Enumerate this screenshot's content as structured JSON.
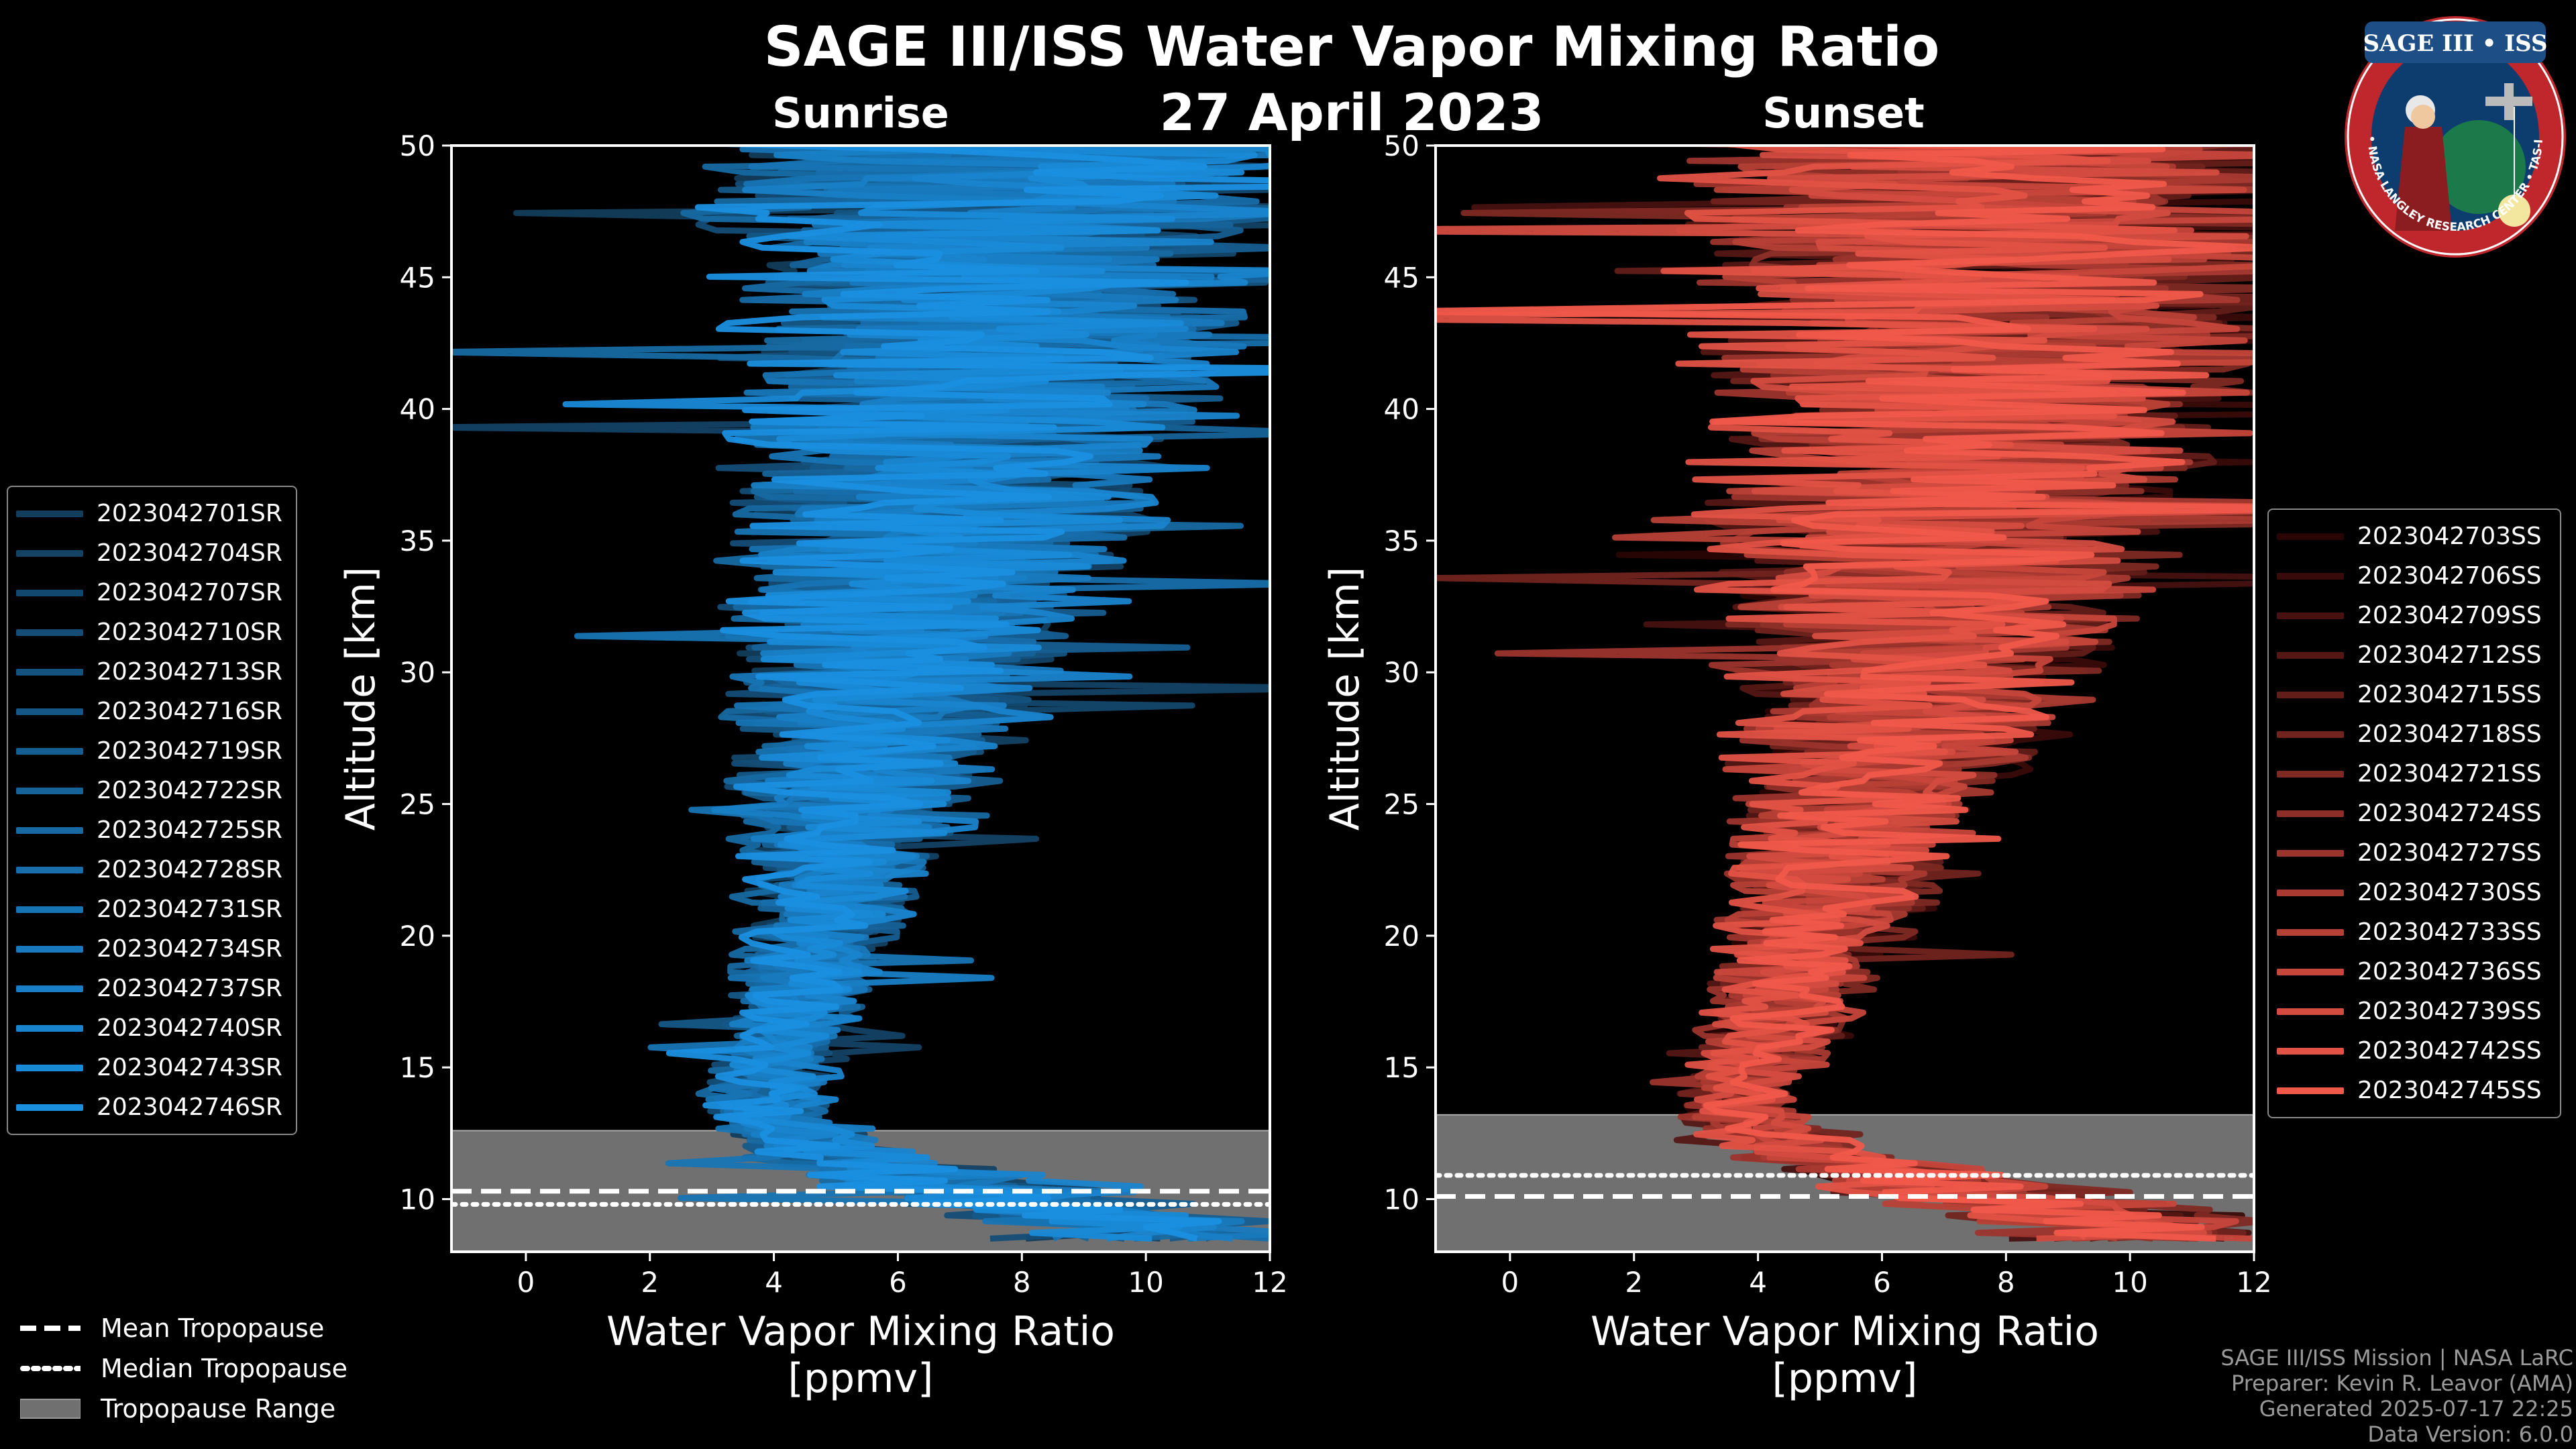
{
  "title": "SAGE III/ISS Water Vapor Mixing Ratio",
  "date_label": "27 April 2023",
  "footer": {
    "line1": "SAGE III/ISS Mission | NASA LaRC",
    "line2": "Preparer: Kevin R. Leavor (AMA)",
    "line3": "Generated 2025-07-17 22:25",
    "line4": "Data Version: 6.0.0"
  },
  "badge": {
    "title": "SAGE III • ISS",
    "ring_text": "BALL • NASA LANGLEY RESEARCH CENTER • TAS-I • ESA"
  },
  "tropopause_legend": {
    "mean": "Mean Tropopause",
    "median": "Median Tropopause",
    "range": "Tropopause Range"
  },
  "chart_data": [
    {
      "type": "line",
      "panel": "left",
      "subtitle": "Sunrise",
      "xlabel": "Water Vapor Mixing Ratio\n[ppmv]",
      "ylabel": "Altitude [km]",
      "xlim": [
        -1.2,
        12
      ],
      "ylim": [
        8,
        50
      ],
      "xticks": [
        0,
        2,
        4,
        6,
        8,
        10,
        12
      ],
      "yticks": [
        10,
        15,
        20,
        25,
        30,
        35,
        40,
        45,
        50
      ],
      "tropopause": {
        "mean": 10.3,
        "median": 9.8,
        "range": [
          8.0,
          12.6
        ]
      },
      "color_dark": "#123d5c",
      "color_light": "#1a8fe0",
      "series": [
        {
          "name": "2023042701SR"
        },
        {
          "name": "2023042704SR"
        },
        {
          "name": "2023042707SR"
        },
        {
          "name": "2023042710SR"
        },
        {
          "name": "2023042713SR"
        },
        {
          "name": "2023042716SR"
        },
        {
          "name": "2023042719SR"
        },
        {
          "name": "2023042722SR"
        },
        {
          "name": "2023042725SR"
        },
        {
          "name": "2023042728SR"
        },
        {
          "name": "2023042731SR"
        },
        {
          "name": "2023042734SR"
        },
        {
          "name": "2023042737SR"
        },
        {
          "name": "2023042740SR"
        },
        {
          "name": "2023042743SR"
        },
        {
          "name": "2023042746SR"
        }
      ],
      "profile_envelope": {
        "altitude": [
          9,
          10,
          11,
          12,
          13,
          14,
          15,
          17,
          20,
          23,
          26,
          30,
          35,
          40,
          45,
          50
        ],
        "center": [
          10,
          8,
          6,
          4.6,
          4.0,
          3.9,
          4.1,
          4.3,
          4.7,
          5.1,
          5.5,
          6.0,
          6.6,
          7.2,
          7.8,
          8.0
        ],
        "spread": [
          2.0,
          2.0,
          1.6,
          1.0,
          0.8,
          0.8,
          0.8,
          0.9,
          1.0,
          1.3,
          1.7,
          2.2,
          2.7,
          3.2,
          3.7,
          4.0
        ]
      }
    },
    {
      "type": "line",
      "panel": "right",
      "subtitle": "Sunset",
      "xlabel": "Water Vapor Mixing Ratio\n[ppmv]",
      "ylabel": "Altitude [km]",
      "xlim": [
        -1.2,
        12
      ],
      "ylim": [
        8,
        50
      ],
      "xticks": [
        0,
        2,
        4,
        6,
        8,
        10,
        12
      ],
      "yticks": [
        10,
        15,
        20,
        25,
        30,
        35,
        40,
        45,
        50
      ],
      "tropopause": {
        "mean": 10.1,
        "median": 10.9,
        "range": [
          8.0,
          13.2
        ]
      },
      "color_dark": "#2a0505",
      "color_light": "#f0584a",
      "series": [
        {
          "name": "2023042703SS"
        },
        {
          "name": "2023042706SS"
        },
        {
          "name": "2023042709SS"
        },
        {
          "name": "2023042712SS"
        },
        {
          "name": "2023042715SS"
        },
        {
          "name": "2023042718SS"
        },
        {
          "name": "2023042721SS"
        },
        {
          "name": "2023042724SS"
        },
        {
          "name": "2023042727SS"
        },
        {
          "name": "2023042730SS"
        },
        {
          "name": "2023042733SS"
        },
        {
          "name": "2023042736SS"
        },
        {
          "name": "2023042739SS"
        },
        {
          "name": "2023042742SS"
        },
        {
          "name": "2023042745SS"
        }
      ],
      "profile_envelope": {
        "altitude": [
          9,
          10,
          11,
          12,
          13,
          14,
          15,
          17,
          20,
          23,
          26,
          30,
          35,
          40,
          45,
          50
        ],
        "center": [
          10,
          8,
          6,
          4.6,
          3.8,
          3.7,
          4.0,
          4.4,
          4.9,
          5.4,
          5.9,
          6.5,
          7.1,
          7.6,
          8.0,
          8.2
        ],
        "spread": [
          2.0,
          2.0,
          1.6,
          1.0,
          0.8,
          0.8,
          0.9,
          1.0,
          1.2,
          1.5,
          1.9,
          2.4,
          3.0,
          3.5,
          4.0,
          4.2
        ]
      }
    }
  ]
}
